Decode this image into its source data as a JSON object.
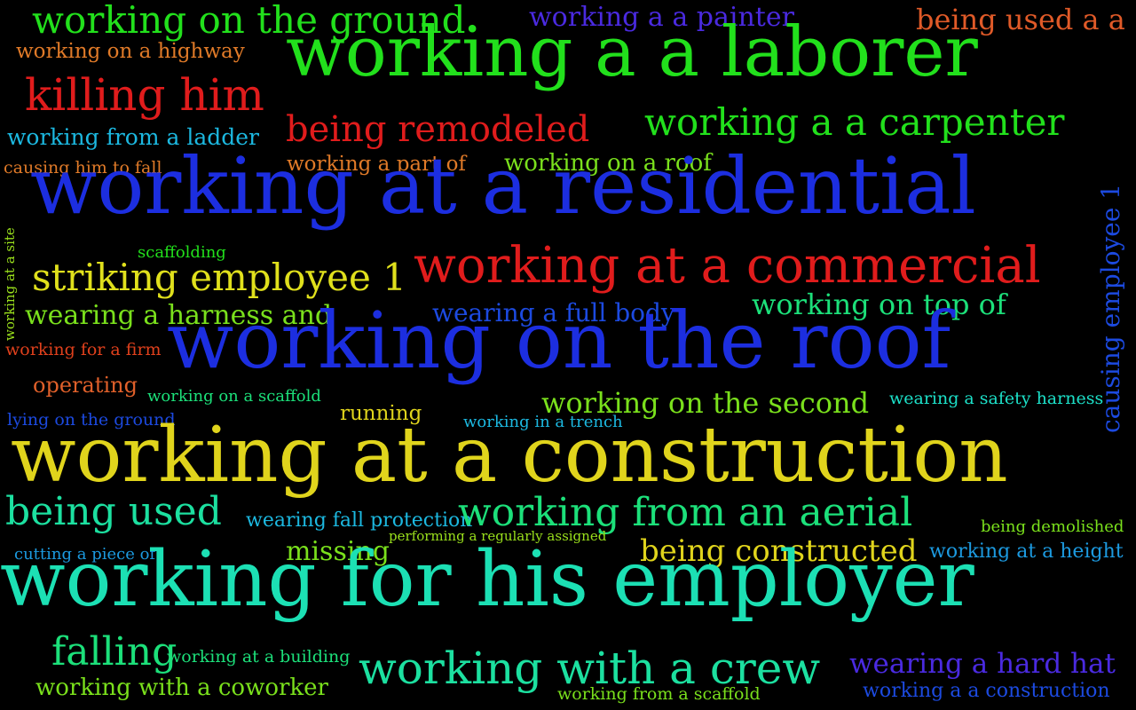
{
  "palette": {
    "background": "#000000",
    "green": "#22e01c",
    "blue": "#1c2ee0",
    "red": "#e01c1c",
    "orange": "#e07a28",
    "yellow": "#e0d41c",
    "teal": "#1ce0b4",
    "cyan": "#1cb8e0",
    "light_green": "#9ae01c",
    "royal_blue": "#2244e8",
    "purple": "#4a2ae0"
  },
  "words": [
    {
      "id": "working-on-the-ground",
      "text": "working on the ground",
      "weight": 3,
      "color": "#22e01c"
    },
    {
      "id": "working-a-a-painter",
      "text": "working a a painter",
      "weight": 2,
      "color": "#4a2ae0"
    },
    {
      "id": "being-used-a-a",
      "text": "being used a a",
      "weight": 2,
      "color": "#e05a28"
    },
    {
      "id": "working-on-a-highway",
      "text": "working on a highway",
      "weight": 1,
      "color": "#e07a28"
    },
    {
      "id": "working-a-a-laborer",
      "text": "working a a laborer",
      "weight": 5,
      "color": "#22e01c"
    },
    {
      "id": "killing-him",
      "text": "killing him",
      "weight": 3,
      "color": "#e01c1c"
    },
    {
      "id": "working-a-a-carpenter",
      "text": "working a a carpenter",
      "weight": 3,
      "color": "#22e01c"
    },
    {
      "id": "working-from-a-ladder",
      "text": "working from a ladder",
      "weight": 2,
      "color": "#1cb8e0"
    },
    {
      "id": "being-remodeled",
      "text": "being remodeled",
      "weight": 3,
      "color": "#e01c1c"
    },
    {
      "id": "causing-him-to-fall",
      "text": "causing him to fall",
      "weight": 1,
      "color": "#e07a28"
    },
    {
      "id": "working-a-part-of",
      "text": "working a part of",
      "weight": 1,
      "color": "#e07a28"
    },
    {
      "id": "working-on-a-roof",
      "text": "working on a roof",
      "weight": 2,
      "color": "#7ae01c"
    },
    {
      "id": "working-at-a-residential",
      "text": "working at a residential",
      "weight": 6,
      "color": "#1c2ee0"
    },
    {
      "id": "causing-employee-1",
      "text": "causing employee 1",
      "weight": 2,
      "color": "#1c4ae0"
    },
    {
      "id": "working-at-a-site",
      "text": "working at a site",
      "weight": 1,
      "color": "#9ae01c"
    },
    {
      "id": "scaffolding",
      "text": "scaffolding",
      "weight": 1,
      "color": "#22e01c"
    },
    {
      "id": "striking-employee-1",
      "text": "striking employee 1",
      "weight": 3,
      "color": "#e0e01c"
    },
    {
      "id": "working-at-a-commercial",
      "text": "working at a commercial",
      "weight": 4,
      "color": "#e01c1c"
    },
    {
      "id": "wearing-a-harness-and",
      "text": "wearing a harness and",
      "weight": 2,
      "color": "#7ae01c"
    },
    {
      "id": "wearing-a-full-body",
      "text": "wearing a full body",
      "weight": 2,
      "color": "#1c4ae0"
    },
    {
      "id": "working-on-top-of",
      "text": "working on top of",
      "weight": 2,
      "color": "#1ce07a"
    },
    {
      "id": "working-for-a-firm",
      "text": "working for a firm",
      "weight": 1,
      "color": "#e0401c"
    },
    {
      "id": "working-on-the-roof",
      "text": "working on the roof",
      "weight": 6,
      "color": "#1c2ee0"
    },
    {
      "id": "operating",
      "text": "operating",
      "weight": 2,
      "color": "#e0602a"
    },
    {
      "id": "working-on-a-scaffold",
      "text": "working on a scaffold",
      "weight": 1,
      "color": "#1ce07a"
    },
    {
      "id": "wearing-a-safety-harness",
      "text": "wearing a safety harness",
      "weight": 1,
      "color": "#1ce0c8"
    },
    {
      "id": "working-on-the-second",
      "text": "working on the second",
      "weight": 2,
      "color": "#7ae01c"
    },
    {
      "id": "lying-on-the-ground",
      "text": "lying on the ground",
      "weight": 1,
      "color": "#1c4ae0"
    },
    {
      "id": "running",
      "text": "running",
      "weight": 1,
      "color": "#e0d41c"
    },
    {
      "id": "working-in-a-trench",
      "text": "working in a trench",
      "weight": 1,
      "color": "#1cb8e0"
    },
    {
      "id": "working-at-a-construction",
      "text": "working at a construction",
      "weight": 6,
      "color": "#e0d41c"
    },
    {
      "id": "being-used",
      "text": "being used",
      "weight": 3,
      "color": "#1ce0a0"
    },
    {
      "id": "wearing-fall-protection",
      "text": "wearing fall protection",
      "weight": 1,
      "color": "#1cb8e0"
    },
    {
      "id": "working-from-an-aerial",
      "text": "working from an aerial",
      "weight": 3,
      "color": "#1ce07a"
    },
    {
      "id": "being-demolished",
      "text": "being demolished",
      "weight": 1,
      "color": "#7ae01c"
    },
    {
      "id": "performing-a-regularly-assigned",
      "text": "performing a regularly assigned",
      "weight": 1,
      "color": "#9ae01c"
    },
    {
      "id": "cutting-a-piece-of",
      "text": "cutting a piece of",
      "weight": 1,
      "color": "#1c9ae0"
    },
    {
      "id": "missing",
      "text": "missing",
      "weight": 2,
      "color": "#7ae01c"
    },
    {
      "id": "being-constructed",
      "text": "being constructed",
      "weight": 2,
      "color": "#e0d41c"
    },
    {
      "id": "working-at-a-height",
      "text": "working at a height",
      "weight": 1,
      "color": "#1c9ae0"
    },
    {
      "id": "working-for-his-employer",
      "text": "working for his employer",
      "weight": 6,
      "color": "#1ce0b4"
    },
    {
      "id": "falling",
      "text": "falling",
      "weight": 3,
      "color": "#1ce07a"
    },
    {
      "id": "working-at-a-building",
      "text": "working at a building",
      "weight": 1,
      "color": "#1ce07a"
    },
    {
      "id": "working-with-a-crew",
      "text": "working with a crew",
      "weight": 4,
      "color": "#1ce0a0"
    },
    {
      "id": "wearing-a-hard-hat",
      "text": "wearing a hard hat",
      "weight": 2,
      "color": "#4a2ae0"
    },
    {
      "id": "working-with-a-coworker",
      "text": "working with a coworker",
      "weight": 2,
      "color": "#7ae01c"
    },
    {
      "id": "working-from-a-scaffold",
      "text": "working from a scaffold",
      "weight": 1,
      "color": "#7ae01c"
    },
    {
      "id": "working-a-a-construction",
      "text": "working a a construction",
      "weight": 1,
      "color": "#1c4ae0"
    }
  ]
}
